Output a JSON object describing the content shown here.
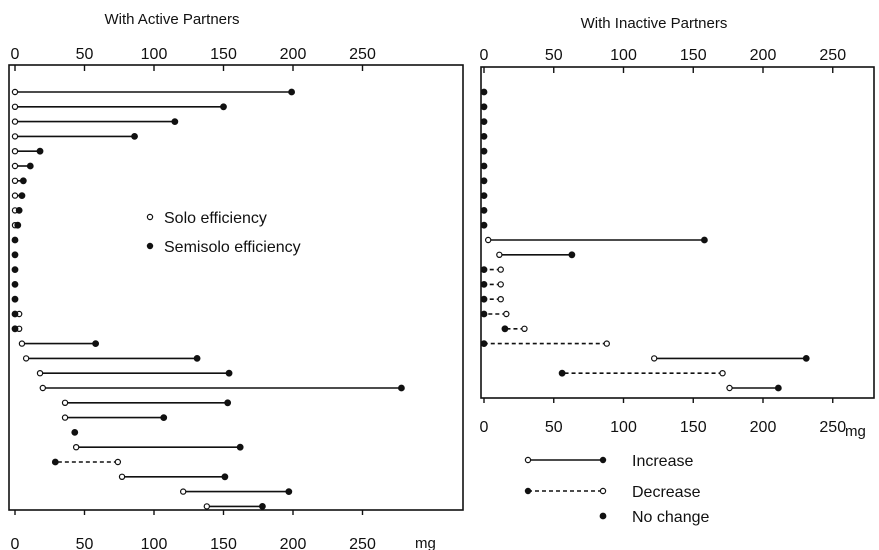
{
  "chart_data": [
    {
      "type": "dumbbell",
      "title": "With Active Partners",
      "unit": "mg",
      "xlim": [
        0,
        295
      ],
      "tick_values": [
        0,
        50,
        100,
        150,
        200,
        250
      ],
      "tick_labels": [
        "0",
        "50",
        "100",
        "150",
        "200",
        "250"
      ],
      "legend": [
        {
          "marker": "open",
          "label": "Solo efficiency"
        },
        {
          "marker": "filled",
          "label": "Semisolo efficiency"
        }
      ],
      "pairs": [
        {
          "solo": 0,
          "semisolo": 199,
          "change": "increase"
        },
        {
          "solo": 0,
          "semisolo": 150,
          "change": "increase"
        },
        {
          "solo": 0,
          "semisolo": 115,
          "change": "increase"
        },
        {
          "solo": 0,
          "semisolo": 86,
          "change": "increase"
        },
        {
          "solo": 0,
          "semisolo": 18,
          "change": "increase"
        },
        {
          "solo": 0,
          "semisolo": 11,
          "change": "increase"
        },
        {
          "solo": 0,
          "semisolo": 6,
          "change": "increase"
        },
        {
          "solo": 0,
          "semisolo": 5,
          "change": "increase"
        },
        {
          "solo": 0,
          "semisolo": 3,
          "change": "increase"
        },
        {
          "solo": 0,
          "semisolo": 2,
          "change": "increase"
        },
        {
          "solo": 0,
          "semisolo": 0,
          "change": "none"
        },
        {
          "solo": 0,
          "semisolo": 0,
          "change": "none"
        },
        {
          "solo": 0,
          "semisolo": 0,
          "change": "none"
        },
        {
          "solo": 0,
          "semisolo": 0,
          "change": "none"
        },
        {
          "solo": 0,
          "semisolo": 0,
          "change": "none"
        },
        {
          "solo": 3,
          "semisolo": 0,
          "change": "decrease"
        },
        {
          "solo": 3,
          "semisolo": 0,
          "change": "decrease"
        },
        {
          "solo": 5,
          "semisolo": 58,
          "change": "increase"
        },
        {
          "solo": 8,
          "semisolo": 131,
          "change": "increase"
        },
        {
          "solo": 18,
          "semisolo": 154,
          "change": "increase"
        },
        {
          "solo": 20,
          "semisolo": 278,
          "change": "increase"
        },
        {
          "solo": 36,
          "semisolo": 153,
          "change": "increase"
        },
        {
          "solo": 36,
          "semisolo": 107,
          "change": "increase"
        },
        {
          "solo": 43,
          "semisolo": 43,
          "change": "none"
        },
        {
          "solo": 44,
          "semisolo": 162,
          "change": "increase"
        },
        {
          "solo": 74,
          "semisolo": 29,
          "change": "decrease"
        },
        {
          "solo": 77,
          "semisolo": 151,
          "change": "increase"
        },
        {
          "solo": 121,
          "semisolo": 197,
          "change": "increase"
        },
        {
          "solo": 138,
          "semisolo": 178,
          "change": "increase"
        }
      ]
    },
    {
      "type": "dumbbell",
      "title": "With Inactive Partners",
      "unit": "mg",
      "xlim": [
        0,
        260
      ],
      "tick_values": [
        0,
        50,
        100,
        150,
        200,
        250
      ],
      "tick_labels": [
        "0",
        "50",
        "100",
        "150",
        "200",
        "250"
      ],
      "legend": [
        {
          "marker": "open-to-filled",
          "line": "solid",
          "label": "Increase"
        },
        {
          "marker": "filled-to-open",
          "line": "dashed",
          "label": "Decrease"
        },
        {
          "marker": "filled",
          "label": "No change"
        }
      ],
      "pairs": [
        {
          "solo": 0,
          "semisolo": 0,
          "change": "none"
        },
        {
          "solo": 0,
          "semisolo": 0,
          "change": "none"
        },
        {
          "solo": 0,
          "semisolo": 0,
          "change": "none"
        },
        {
          "solo": 0,
          "semisolo": 0,
          "change": "none"
        },
        {
          "solo": 0,
          "semisolo": 0,
          "change": "none"
        },
        {
          "solo": 0,
          "semisolo": 0,
          "change": "none"
        },
        {
          "solo": 0,
          "semisolo": 0,
          "change": "none"
        },
        {
          "solo": 0,
          "semisolo": 0,
          "change": "none"
        },
        {
          "solo": 0,
          "semisolo": 0,
          "change": "none"
        },
        {
          "solo": 0,
          "semisolo": 0,
          "change": "none"
        },
        {
          "solo": 3,
          "semisolo": 158,
          "change": "increase"
        },
        {
          "solo": 11,
          "semisolo": 63,
          "change": "increase"
        },
        {
          "solo": 12,
          "semisolo": 0,
          "change": "decrease"
        },
        {
          "solo": 12,
          "semisolo": 0,
          "change": "decrease"
        },
        {
          "solo": 12,
          "semisolo": 0,
          "change": "decrease"
        },
        {
          "solo": 16,
          "semisolo": 0,
          "change": "decrease"
        },
        {
          "solo": 29,
          "semisolo": 15,
          "change": "decrease"
        },
        {
          "solo": 88,
          "semisolo": 0,
          "change": "decrease"
        },
        {
          "solo": 122,
          "semisolo": 231,
          "change": "increase"
        },
        {
          "solo": 171,
          "semisolo": 56,
          "change": "decrease"
        },
        {
          "solo": 176,
          "semisolo": 211,
          "change": "increase"
        }
      ]
    }
  ]
}
